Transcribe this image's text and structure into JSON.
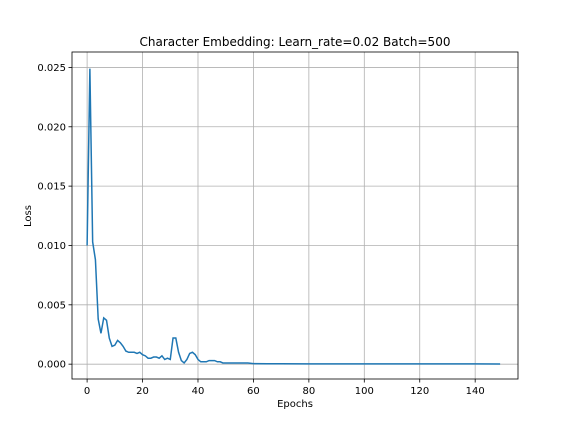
{
  "chart_data": {
    "type": "line",
    "title": "Character Embedding: Learn_rate=0.02 Batch=500",
    "xlabel": "Epochs",
    "ylabel": "Loss",
    "xlim": [
      -5.45,
      155.45
    ],
    "ylim": [
      -0.00125,
      0.0263
    ],
    "xticks": [
      0,
      20,
      40,
      60,
      80,
      100,
      120,
      140
    ],
    "yticks": [
      0.0,
      0.005,
      0.01,
      0.015,
      0.02,
      0.025
    ],
    "ytick_labels": [
      "0.000",
      "0.005",
      "0.010",
      "0.015",
      "0.020",
      "0.025"
    ],
    "grid": true,
    "color": "#1f77b4",
    "series": [
      {
        "x": [
          0,
          1,
          2,
          3,
          4,
          5,
          6,
          7,
          8,
          9,
          10,
          11,
          12,
          13,
          14,
          15,
          16,
          17,
          18,
          19,
          20,
          21,
          22,
          23,
          24,
          25,
          26,
          27,
          28,
          29,
          30,
          31,
          32,
          33,
          34,
          35,
          36,
          37,
          38,
          39,
          40,
          41,
          42,
          43,
          44,
          45,
          46,
          47,
          48,
          49,
          50,
          52,
          54,
          56,
          58,
          60,
          65,
          70,
          80,
          90,
          100,
          110,
          120,
          130,
          140,
          149
        ],
        "y": [
          0.01,
          0.0249,
          0.0103,
          0.0088,
          0.0038,
          0.0026,
          0.0039,
          0.0037,
          0.0022,
          0.0015,
          0.0016,
          0.002,
          0.0018,
          0.0015,
          0.0011,
          0.001,
          0.001,
          0.001,
          0.0009,
          0.001,
          0.0008,
          0.0007,
          0.0005,
          0.0005,
          0.0006,
          0.0006,
          0.0005,
          0.0007,
          0.0004,
          0.0005,
          0.0004,
          0.0022,
          0.0022,
          0.001,
          0.0003,
          0.0001,
          0.0004,
          0.0009,
          0.001,
          0.0008,
          0.0004,
          0.0002,
          0.0002,
          0.0002,
          0.0003,
          0.0003,
          0.0003,
          0.0002,
          0.0002,
          0.0001,
          0.0001,
          0.0001,
          0.0001,
          0.0001,
          0.0001,
          5e-05,
          4e-05,
          3e-05,
          2e-05,
          2e-05,
          2e-05,
          2e-05,
          2e-05,
          2e-05,
          2e-05,
          1e-05
        ]
      }
    ]
  }
}
